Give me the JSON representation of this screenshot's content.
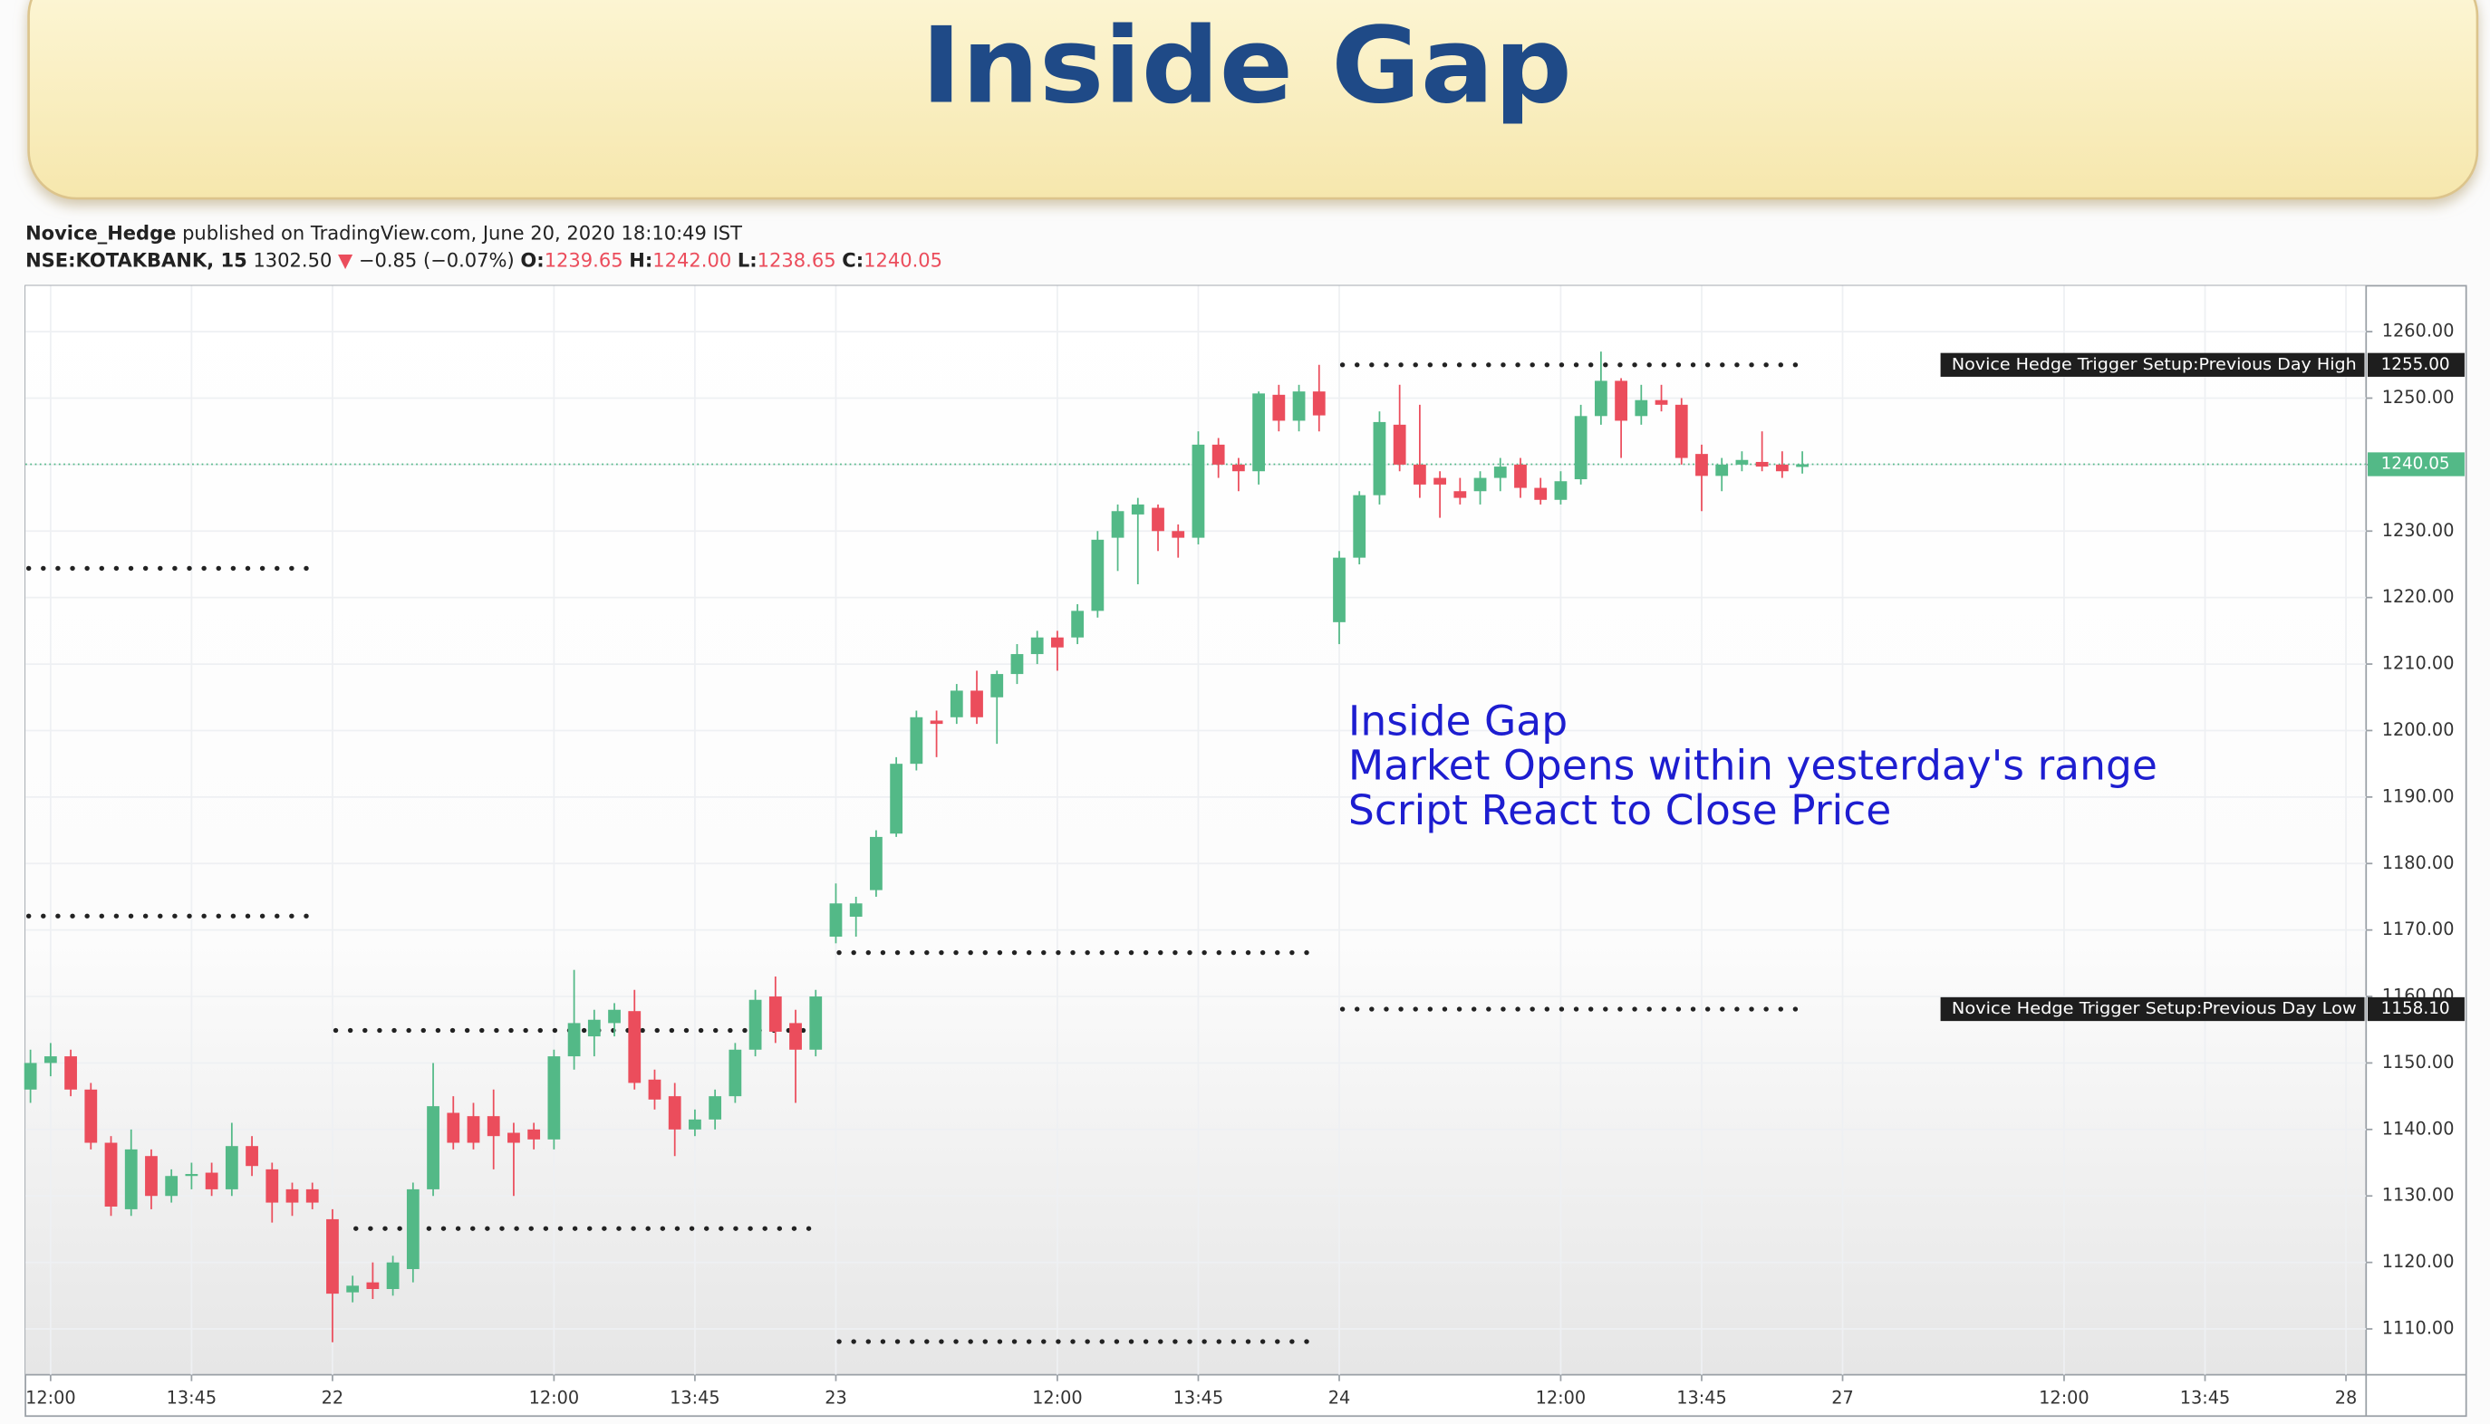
{
  "chart_data": {
    "type": "candlestick",
    "title": "Inside Gap",
    "author": "Novice_Hedge",
    "published": "published on TradingView.com, June 20, 2020 18:10:49 IST",
    "symbol": "NSE:KOTAKBANK, 15",
    "last": "1302.50",
    "change_arrow": "▼",
    "change": "−0.85 (−0.07%)",
    "ohlc_header": [
      {
        "key": "O:",
        "text": "1239.65"
      },
      {
        "key": "H:",
        "text": "1242.00"
      },
      {
        "key": "L:",
        "text": "1238.65"
      },
      {
        "key": "C:",
        "text": "1240.05"
      }
    ],
    "annotation": [
      "Inside Gap",
      "Market Opens within yesterday's range",
      "Script React to Close Price"
    ],
    "up_color": "#53b987",
    "down_color": "#eb4d5c",
    "level_color": "#222222",
    "x": [
      -15,
      -14,
      -13,
      -12,
      -11,
      -10,
      -9,
      -8,
      -7,
      -6,
      -5,
      -4,
      -3,
      -2,
      -1,
      0,
      1,
      2,
      3,
      4,
      5,
      6,
      7,
      8,
      9,
      10,
      11,
      12,
      13,
      14,
      15,
      16,
      17,
      18,
      19,
      20,
      21,
      22,
      23,
      24,
      25,
      26,
      27,
      28,
      29,
      30,
      31,
      32,
      33,
      34,
      35,
      36,
      37,
      38,
      39,
      40,
      41,
      42,
      43,
      44,
      45,
      46,
      47,
      48,
      49,
      50,
      51,
      52,
      53,
      54,
      55,
      56,
      57,
      58,
      59,
      60,
      61,
      62,
      63,
      64,
      65,
      66,
      67,
      68,
      69,
      70,
      71,
      72,
      73
    ],
    "open": [
      1146,
      1150,
      1151,
      1146,
      1138,
      1128,
      1136,
      1130,
      1133,
      1133.5,
      1131,
      1137.5,
      1134,
      1131,
      1131,
      1126.5,
      1115.5,
      1117,
      1116,
      1119,
      1131,
      1142.5,
      1142,
      1142,
      1139.5,
      1140,
      1138.5,
      1151,
      1154,
      1156,
      1157.8,
      1147.5,
      1145,
      1140,
      1141.5,
      1145,
      1152,
      1160,
      1156,
      1152,
      1169,
      1172,
      1176,
      1184.5,
      1195,
      1201.5,
      1202,
      1206,
      1205,
      1208.5,
      1211.5,
      1214,
      1214,
      1218,
      1229,
      1232.5,
      1233.5,
      1230,
      1229,
      1243,
      1240,
      1239,
      1250.5,
      1246.6,
      1251,
      1216.3,
      1226,
      1235.4,
      1246,
      1240,
      1238,
      1236,
      1236,
      1238,
      1240,
      1236.5,
      1234.7,
      1237.8,
      1247.3,
      1252.6,
      1247.3,
      1249.7,
      1249,
      1241.6,
      1238.3,
      1240,
      1240.4,
      1240,
      1239.65
    ],
    "high": [
      1152,
      1153,
      1152,
      1147,
      1139,
      1140,
      1137,
      1134,
      1135,
      1135,
      1141,
      1139,
      1135,
      1132,
      1132,
      1128,
      1118,
      1120,
      1121,
      1132,
      1150,
      1145,
      1144,
      1146,
      1141,
      1141,
      1152,
      1164,
      1158,
      1159,
      1161,
      1149,
      1147,
      1143,
      1146,
      1153,
      1161,
      1163,
      1158,
      1161,
      1177,
      1175,
      1185,
      1196,
      1203,
      1203,
      1207,
      1209,
      1209,
      1213,
      1215,
      1215,
      1219,
      1230,
      1234,
      1235,
      1234,
      1231,
      1245,
      1244,
      1241,
      1251,
      1252,
      1252,
      1255,
      1227,
      1236,
      1248,
      1252,
      1249,
      1239,
      1238,
      1239,
      1241,
      1241,
      1238,
      1239,
      1249,
      1257,
      1253,
      1252,
      1252,
      1250,
      1243,
      1241,
      1242,
      1245,
      1242,
      1242
    ],
    "low": [
      1144,
      1148,
      1145,
      1137,
      1127,
      1127,
      1128,
      1129,
      1131,
      1130,
      1130,
      1133,
      1126,
      1127,
      1128,
      1108,
      1114,
      1114.5,
      1115,
      1117,
      1130,
      1137,
      1137,
      1134,
      1130,
      1137,
      1137,
      1149,
      1151,
      1154,
      1146,
      1143,
      1136,
      1139,
      1140,
      1144,
      1151,
      1153,
      1144,
      1151,
      1168,
      1169,
      1175,
      1184,
      1194,
      1196,
      1201,
      1201,
      1198,
      1207,
      1210,
      1209,
      1213,
      1217,
      1224,
      1222,
      1227,
      1226,
      1228,
      1238,
      1236,
      1237,
      1245,
      1245,
      1245,
      1213,
      1225,
      1234,
      1239,
      1235,
      1232,
      1234,
      1234,
      1236,
      1235,
      1234,
      1234,
      1237,
      1246,
      1241,
      1246,
      1248,
      1240,
      1233,
      1236,
      1239,
      1239,
      1238,
      1238.65
    ],
    "close": [
      1150,
      1151,
      1146,
      1138,
      1128.4,
      1137,
      1130,
      1133,
      1133.3,
      1131,
      1137.5,
      1134.5,
      1129,
      1129,
      1129,
      1115.3,
      1116.5,
      1116,
      1120,
      1131,
      1143.5,
      1138,
      1138,
      1139,
      1138,
      1138.5,
      1151,
      1156,
      1156.5,
      1158,
      1147,
      1144.5,
      1140,
      1141.5,
      1145,
      1152,
      1159.5,
      1154.7,
      1152,
      1160,
      1174,
      1174,
      1184,
      1195,
      1202,
      1201,
      1206,
      1202,
      1208.5,
      1211.5,
      1214,
      1212.5,
      1218,
      1228.7,
      1233,
      1234,
      1230,
      1229,
      1243,
      1240,
      1239,
      1250.7,
      1246.6,
      1251,
      1247.4,
      1226,
      1235.4,
      1246.4,
      1240,
      1237,
      1237,
      1235,
      1238,
      1239.7,
      1236.5,
      1234.7,
      1237.5,
      1247.3,
      1252.6,
      1246.6,
      1249.7,
      1249,
      1241,
      1238.3,
      1240,
      1240.7,
      1239.7,
      1239,
      1240.05
    ],
    "level_lines": [
      {
        "x": [
          -15.25,
          -0.75
        ],
        "value": 1224.4
      },
      {
        "x": [
          -15.25,
          -0.75
        ],
        "value": 1172.1
      },
      {
        "x": [
          0,
          24
        ],
        "value": 1154.9
      },
      {
        "x": [
          1,
          24
        ],
        "value": 1125.1
      },
      {
        "x": [
          25,
          49
        ],
        "value": 1166.6
      },
      {
        "x": [
          25,
          49
        ],
        "value": 1108.1
      },
      {
        "x": [
          50,
          73
        ],
        "value": 1255
      },
      {
        "x": [
          50,
          73
        ],
        "value": 1158.1
      }
    ],
    "level_tags": [
      {
        "text": "Novice Hedge Trigger Setup:Previous Day High",
        "value": 1255,
        "value_label": "1255.00"
      },
      {
        "text": "Novice Hedge Trigger Setup:Previous Day Low",
        "value": 1158.1,
        "value_label": "1158.10"
      }
    ],
    "last_price": {
      "value": 1240.05,
      "label": "1240.05",
      "color": "#53b987"
    },
    "xlim": [
      -15.25,
      101
    ],
    "xticks": [
      {
        "value": -14,
        "label": "12:00"
      },
      {
        "value": -7,
        "label": "13:45"
      },
      {
        "value": 0,
        "label": "22"
      },
      {
        "value": 11,
        "label": "12:00"
      },
      {
        "value": 18,
        "label": "13:45"
      },
      {
        "value": 25,
        "label": "23"
      },
      {
        "value": 36,
        "label": "12:00"
      },
      {
        "value": 43,
        "label": "13:45"
      },
      {
        "value": 50,
        "label": "24"
      },
      {
        "value": 61,
        "label": "12:00"
      },
      {
        "value": 68,
        "label": "13:45"
      },
      {
        "value": 75,
        "label": "27"
      },
      {
        "value": 86,
        "label": "12:00"
      },
      {
        "value": 93,
        "label": "13:45"
      },
      {
        "value": 100,
        "label": "28"
      }
    ],
    "ylim": [
      1103.1,
      1266.9
    ],
    "yticks": [
      {
        "value": 1110,
        "label": "1110.00"
      },
      {
        "value": 1120,
        "label": "1120.00"
      },
      {
        "value": 1130,
        "label": "1130.00"
      },
      {
        "value": 1140,
        "label": "1140.00"
      },
      {
        "value": 1150,
        "label": "1150.00"
      },
      {
        "value": 1160,
        "label": "1160.00"
      },
      {
        "value": 1170,
        "label": "1170.00"
      },
      {
        "value": 1180,
        "label": "1180.00"
      },
      {
        "value": 1190,
        "label": "1190.00"
      },
      {
        "value": 1200,
        "label": "1200.00"
      },
      {
        "value": 1210,
        "label": "1210.00"
      },
      {
        "value": 1220,
        "label": "1220.00"
      },
      {
        "value": 1230,
        "label": "1230.00"
      },
      {
        "value": 1240,
        "label": "1240.00"
      },
      {
        "value": 1250,
        "label": "1250.00"
      },
      {
        "value": 1260,
        "label": "1260.00"
      }
    ],
    "grid": true
  }
}
